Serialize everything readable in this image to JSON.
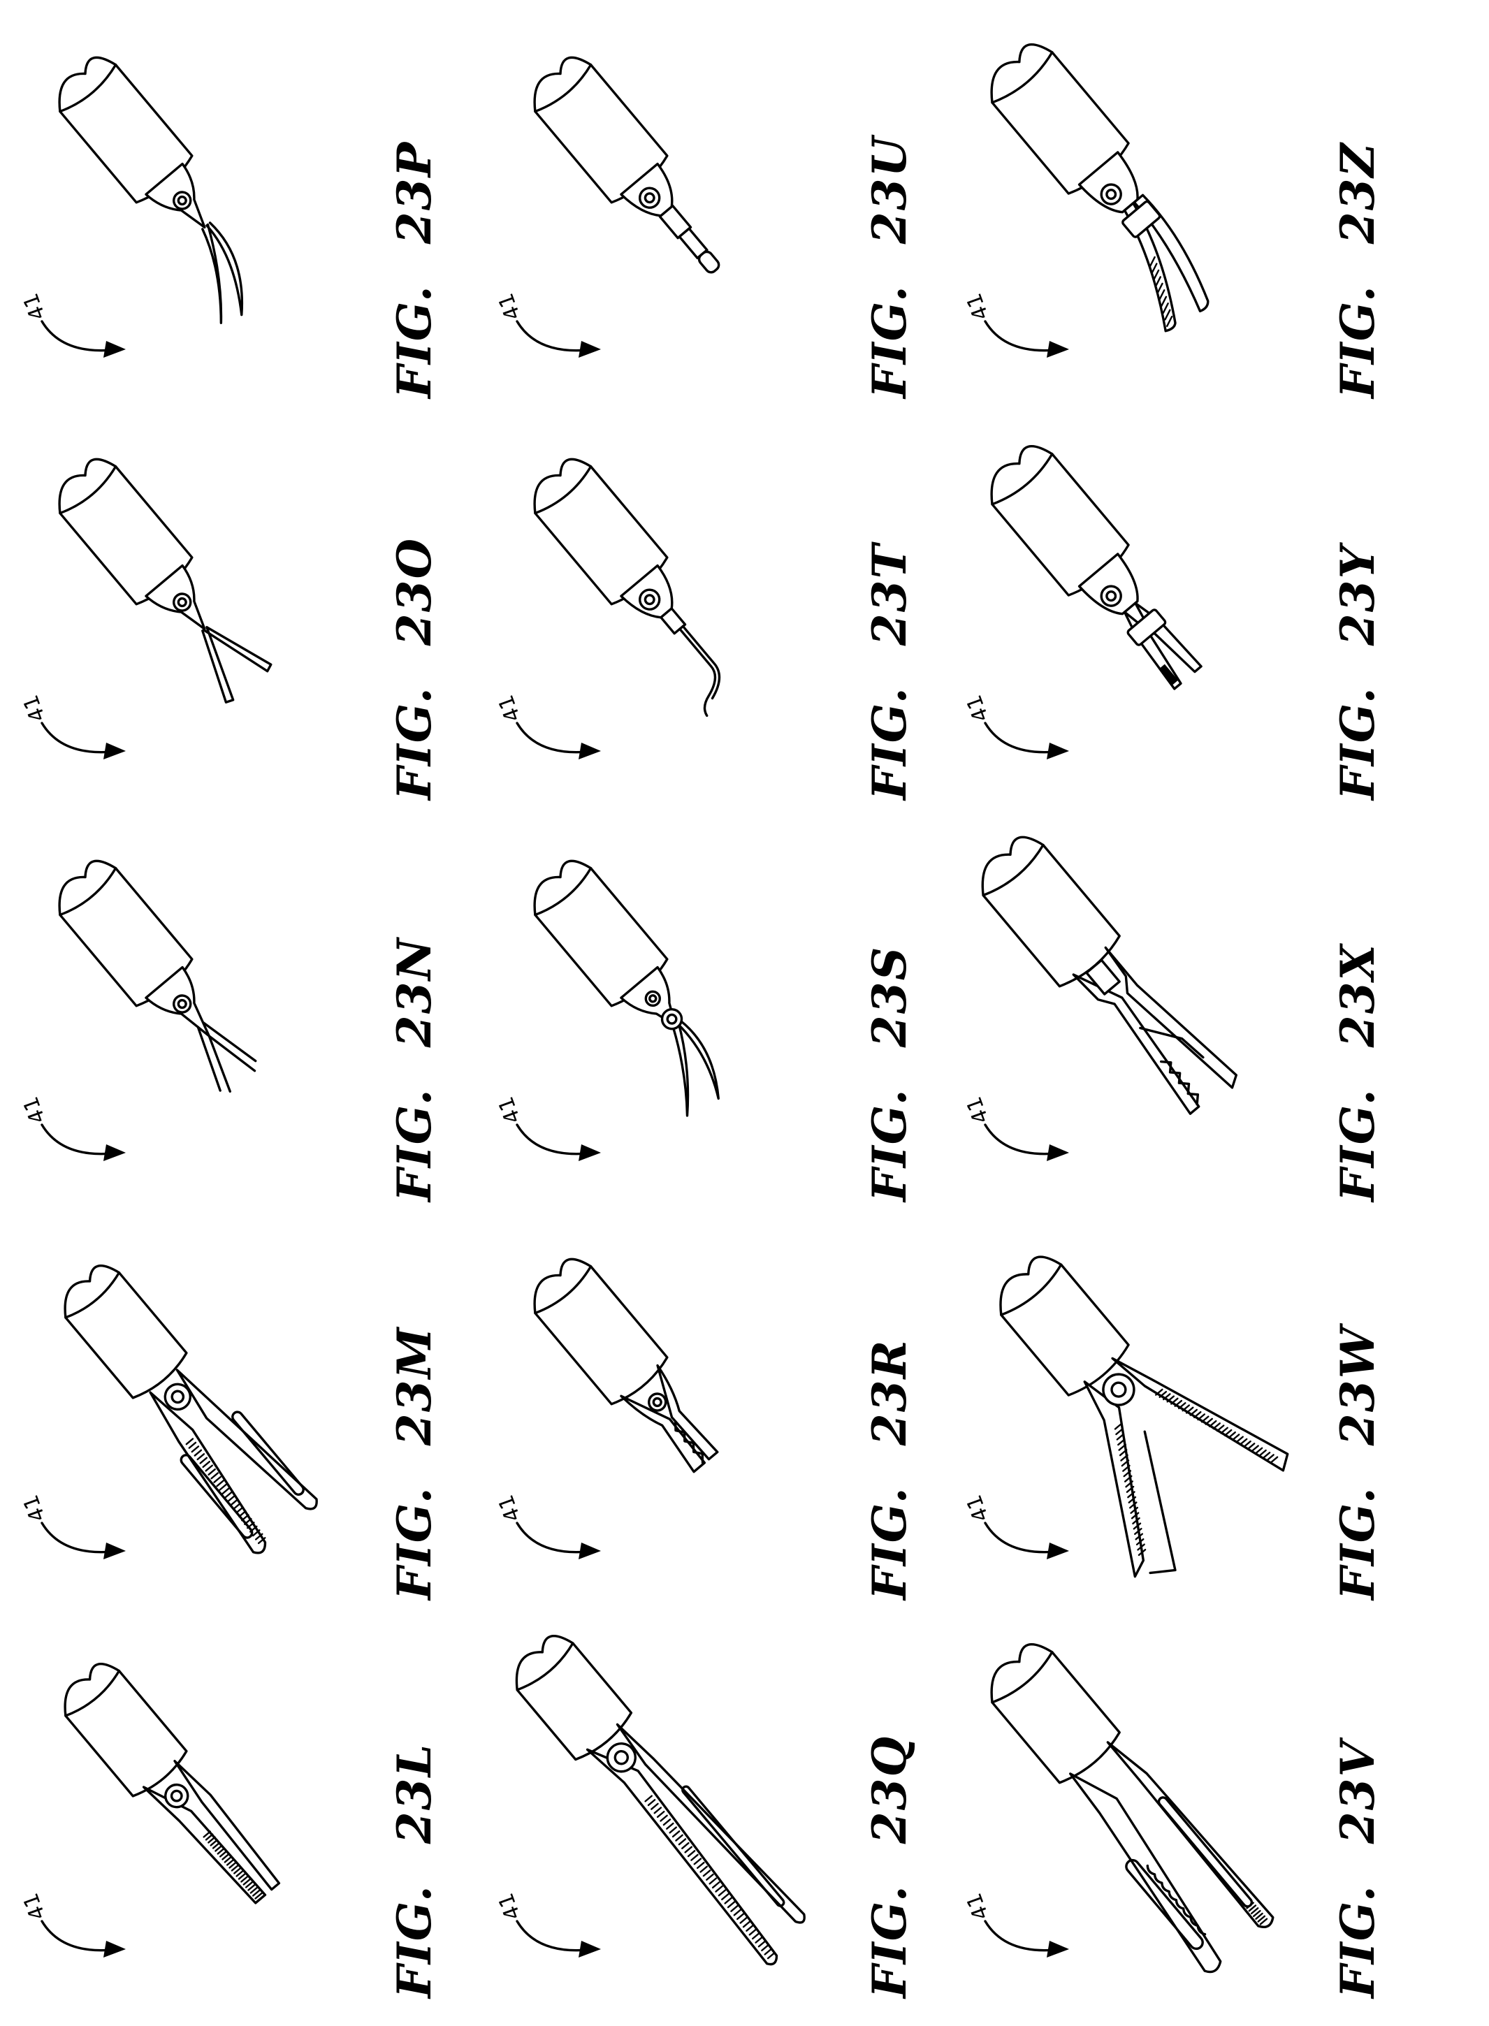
{
  "sheet": {
    "orientation": "rotated-90-ccw",
    "reference_numeral": "41",
    "caption_prefix": "FIG.",
    "figures": [
      {
        "id": "23L",
        "tool": "grasper-long-serrated"
      },
      {
        "id": "23M",
        "tool": "fenestrated-grasper"
      },
      {
        "id": "23N",
        "tool": "fine-dissector"
      },
      {
        "id": "23O",
        "tool": "straight-dissector"
      },
      {
        "id": "23P",
        "tool": "curved-scissors"
      },
      {
        "id": "23Q",
        "tool": "long-grasper"
      },
      {
        "id": "23R",
        "tool": "toothed-grasper"
      },
      {
        "id": "23S",
        "tool": "curved-scissors-pivot"
      },
      {
        "id": "23T",
        "tool": "hook-electrode"
      },
      {
        "id": "23U",
        "tool": "spatula-electrode"
      },
      {
        "id": "23V",
        "tool": "fenestrated-bowel-grasper"
      },
      {
        "id": "23W",
        "tool": "wide-open-grasper"
      },
      {
        "id": "23X",
        "tool": "toothed-forceps"
      },
      {
        "id": "23Y",
        "tool": "needle-driver"
      },
      {
        "id": "23Z",
        "tool": "curved-dissector"
      }
    ]
  }
}
